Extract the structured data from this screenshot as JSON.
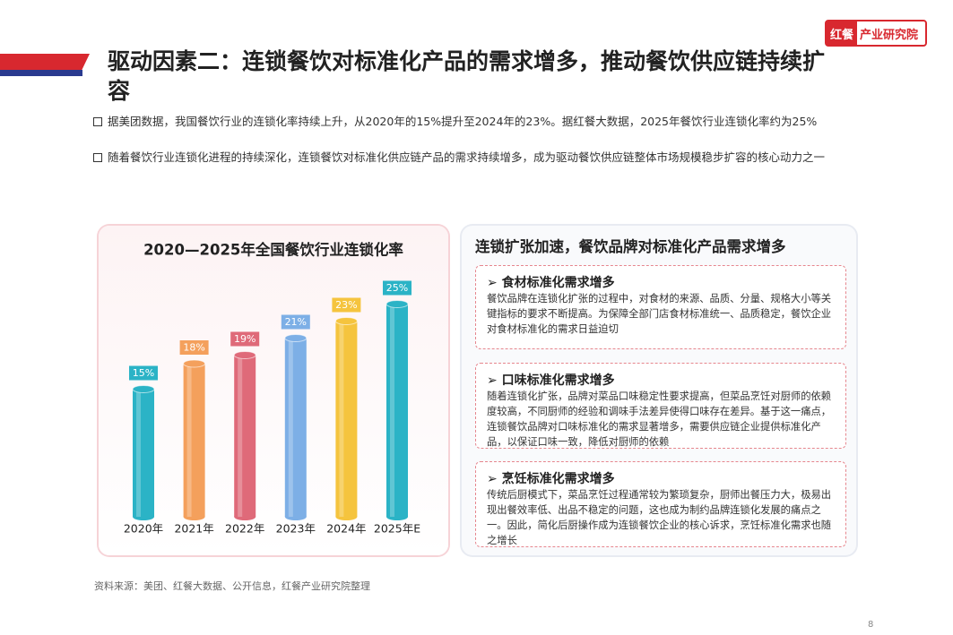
{
  "header": {
    "logo": "红餐",
    "brand": "产业研究院",
    "title": "驱动因素二：连锁餐饮对标准化产品的需求增多，推动餐饮供应链持续扩容"
  },
  "bullets": [
    "据美团数据，我国餐饮行业的连锁化率持续上升，从2020年的15%提升至2024年的23%。据红餐大数据，2025年餐饮行业连锁化率约为25%",
    "随着餐饮行业连锁化进程的持续深化，连锁餐饮对标准化供应链产品的需求持续增多，成为驱动餐饮供应链整体市场规模稳步扩容的核心动力之一"
  ],
  "chart_data": {
    "type": "bar",
    "title": "2020—2025年全国餐饮行业连锁化率",
    "categories": [
      "2020年",
      "2021年",
      "2022年",
      "2023年",
      "2024年",
      "2025年E"
    ],
    "values": [
      15,
      18,
      19,
      21,
      23,
      25
    ],
    "value_labels": [
      "15%",
      "18%",
      "19%",
      "21%",
      "23%",
      "25%"
    ],
    "colors": [
      "#2bb3c6",
      "#f4a05c",
      "#df6a79",
      "#7dafe6",
      "#f5c43e",
      "#2bb3c6"
    ]
  },
  "panel": {
    "title": "连锁扩张加速，餐饮品牌对标准化产品需求增多",
    "cards": [
      {
        "title": "食材标准化需求增多",
        "text": "餐饮品牌在连锁化扩张的过程中，对食材的来源、品质、分量、规格大小等关键指标的要求不断提高。为保障全部门店食材标准统一、品质稳定，餐饮企业对食材标准化的需求日益迫切"
      },
      {
        "title": "口味标准化需求增多",
        "text": "随着连锁化扩张，品牌对菜品口味稳定性要求提高，但菜品烹饪对厨师的依赖度较高，不同厨师的经验和调味手法差异使得口味存在差异。基于这一痛点，连锁餐饮品牌对口味标准化的需求显著增多，需要供应链企业提供标准化产品，以保证口味一致，降低对厨师的依赖"
      },
      {
        "title": "烹饪标准化需求增多",
        "text": "传统后厨模式下，菜品烹饪过程通常较为繁琐复杂，厨师出餐压力大，极易出现出餐效率低、出品不稳定的问题，这也成为制约品牌连锁化发展的痛点之一。因此，简化后厨操作成为连锁餐饮企业的核心诉求，烹饪标准化需求也随之增长"
      }
    ]
  },
  "source": "资料来源：美团、红餐大数据、公开信息，红餐产业研究院整理",
  "page_number": "8"
}
